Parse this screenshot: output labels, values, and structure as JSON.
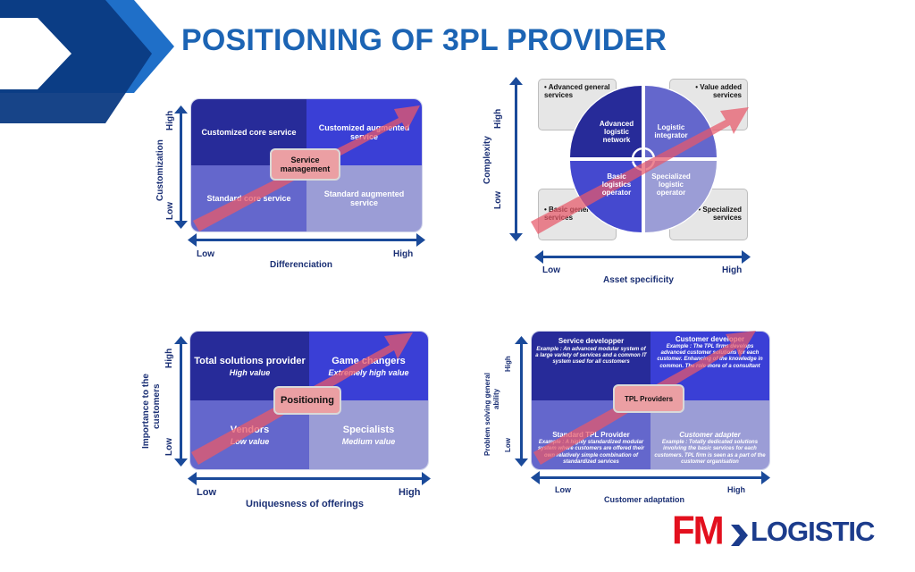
{
  "title": "POSITIONING OF 3PL PROVIDER",
  "colors": {
    "title": "#1c64b4",
    "dark_blue": "#272b99",
    "bright_blue": "#3a3fd6",
    "mid_blue": "#6467cc",
    "light_blue": "#9b9dd6",
    "arrow": "#e8596a",
    "axis": "#1a4a9a",
    "chevron_dark": "#0b2f6b",
    "chevron_light": "#1f6fc8"
  },
  "d1": {
    "q_top_left": "Customized core service",
    "q_top_right": "Customized augmented service",
    "q_bottom_left": "Standard core service",
    "q_bottom_right": "Standard augmented service",
    "center": "Service management",
    "y_axis": "Customization",
    "y_high": "High",
    "y_low": "Low",
    "x_axis": "Differenciation",
    "x_low": "Low",
    "x_high": "High"
  },
  "d2": {
    "note_tl": "• Advanced general services",
    "note_tr": "• Value added services",
    "note_bl": "• Basic general services",
    "note_br": "• Specialized services",
    "seg_tl": "Advanced logistic network",
    "seg_tr": "Logistic integrator",
    "seg_bl": "Basic logistics operator",
    "seg_br": "Specialized logistic operator",
    "y_axis": "Complexity",
    "y_high": "High",
    "y_low": "Low",
    "x_axis": "Asset specificity",
    "x_low": "Low",
    "x_high": "High"
  },
  "d3": {
    "q_top_left_title": "Total solutions provider",
    "q_top_left_sub": "High value",
    "q_top_right_title": "Game changers",
    "q_top_right_sub": "Extremely high value",
    "q_bottom_left_title": "Vendors",
    "q_bottom_left_sub": "Low value",
    "q_bottom_right_title": "Specialists",
    "q_bottom_right_sub": "Medium value",
    "center": "Positioning",
    "y_axis_line1": "Importance to the",
    "y_axis_line2": "customers",
    "y_high": "High",
    "y_low": "Low",
    "x_axis": "Uniquesness of offerings",
    "x_low": "Low",
    "x_high": "High"
  },
  "d4": {
    "q_top_left_title": "Service developper",
    "q_top_left_text": "Example : An advanced modular system of a large variety of services and a common IT system used for all customers",
    "q_top_right_title": "Customer developer",
    "q_top_right_text": "Example : The TPL firms develops advanced customer solutions for each customer. Enhancing of the knowledge in common. The role more of a consultant",
    "q_bottom_left_title": "Standard TPL Provider",
    "q_bottom_left_text": "Example : A highly standardized modular system where customers are offered their own relatively simple combination of standardized services",
    "q_bottom_right_title": "Customer adapter",
    "q_bottom_right_text": "Example : Totally dedicated solutions involving the basic services for each customers. TPL firm is seen as a part of the customer organisation",
    "center": "TPL Providers",
    "y_axis_line1": "Problem solving general",
    "y_axis_line2": "ability",
    "y_high": "High",
    "y_low": "Low",
    "x_axis": "Customer adaptation",
    "x_low": "Low",
    "x_high": "High"
  },
  "logo": {
    "fm": "FM",
    "logistic": "LOGISTIC"
  }
}
